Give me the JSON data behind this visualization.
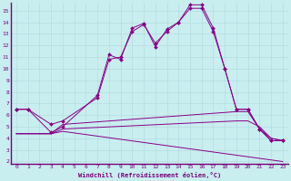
{
  "xlabel": "Windchill (Refroidissement éolien,°C)",
  "xlim": [
    -0.5,
    23.5
  ],
  "ylim": [
    1.8,
    15.7
  ],
  "yticks": [
    2,
    3,
    4,
    5,
    6,
    7,
    8,
    9,
    10,
    11,
    12,
    13,
    14,
    15
  ],
  "xticks": [
    0,
    1,
    2,
    3,
    4,
    5,
    6,
    7,
    8,
    9,
    10,
    11,
    12,
    13,
    14,
    15,
    16,
    17,
    18,
    19,
    20,
    21,
    22,
    23
  ],
  "bg_color": "#c8eef0",
  "grid_color": "#b0d8dc",
  "line_color": "#880088",
  "line1_x": [
    0,
    1,
    3,
    4,
    7,
    8,
    9,
    10,
    11,
    12,
    13,
    14,
    15,
    16,
    17,
    18,
    19,
    20,
    21,
    22,
    23
  ],
  "line1_y": [
    6.5,
    6.5,
    5.2,
    5.5,
    7.5,
    10.8,
    11.0,
    13.2,
    13.8,
    12.2,
    13.2,
    14.0,
    15.2,
    15.2,
    13.2,
    10.0,
    6.5,
    6.5,
    4.8,
    3.8,
    3.8
  ],
  "line2_x": [
    0,
    1,
    3,
    4,
    7,
    8,
    9,
    10,
    11,
    12,
    13,
    14,
    15,
    16,
    17,
    18,
    19,
    20,
    21,
    22,
    23
  ],
  "line2_y": [
    6.5,
    6.5,
    4.5,
    5.0,
    7.7,
    11.2,
    10.8,
    13.5,
    13.9,
    11.9,
    13.4,
    14.0,
    15.5,
    15.5,
    13.5,
    10.0,
    6.5,
    6.5,
    4.8,
    3.8,
    3.8
  ],
  "line3_x": [
    0,
    3,
    4,
    23
  ],
  "line3_y": [
    4.4,
    4.4,
    4.6,
    2.0
  ],
  "line4_x": [
    0,
    3,
    4,
    19,
    20,
    21,
    22,
    23
  ],
  "line4_y": [
    4.4,
    4.4,
    4.8,
    5.5,
    5.5,
    5.0,
    4.0,
    3.8
  ],
  "line5_x": [
    0,
    3,
    4,
    19,
    20,
    21,
    22,
    23
  ],
  "line5_y": [
    4.4,
    4.4,
    5.2,
    6.3,
    6.3,
    4.8,
    4.0,
    3.8
  ]
}
